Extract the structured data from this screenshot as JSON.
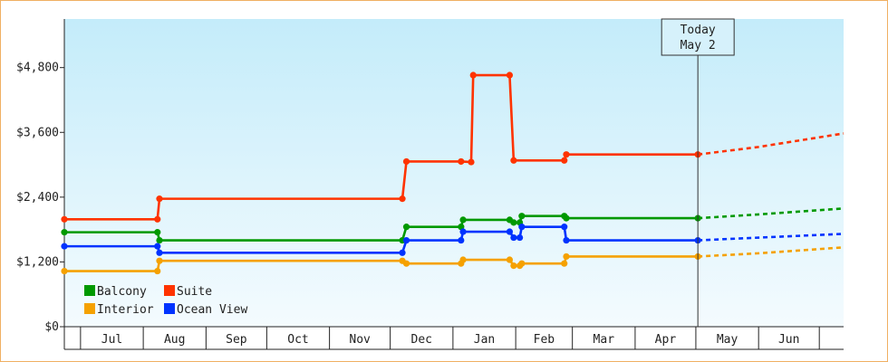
{
  "chart_data": {
    "type": "line",
    "y_axis": {
      "ticks": [
        0,
        1200,
        2400,
        3600,
        4800
      ],
      "tick_labels": [
        "$0",
        "$1,200",
        "$2,400",
        "$3,600",
        "$4,800"
      ],
      "ylim": [
        0,
        5700
      ]
    },
    "x_axis": {
      "months": [
        "Jul",
        "Aug",
        "Sep",
        "Oct",
        "Nov",
        "Dec",
        "Jan",
        "Feb",
        "Mar",
        "Apr",
        "May",
        "Jun"
      ],
      "start": "2025-06-23",
      "end": "2026-07-13"
    },
    "grid": false,
    "legend_placement": "bottom-left",
    "today_marker": {
      "date": "2026-05-02",
      "line1": "Today",
      "line2": "May 2"
    },
    "series": [
      {
        "name": "Suite",
        "color": "#ff3300",
        "points": [
          [
            "2025-06-23",
            1990
          ],
          [
            "2025-08-08",
            1990
          ],
          [
            "2025-08-09",
            2370
          ],
          [
            "2025-12-07",
            2370
          ],
          [
            "2025-12-09",
            3060
          ],
          [
            "2026-01-05",
            3060
          ],
          [
            "2026-01-10",
            3050
          ],
          [
            "2026-01-11",
            4660
          ],
          [
            "2026-01-29",
            4660
          ],
          [
            "2026-01-31",
            3080
          ],
          [
            "2026-02-25",
            3080
          ],
          [
            "2026-02-26",
            3190
          ],
          [
            "2026-05-02",
            3190
          ]
        ],
        "forecast": [
          [
            "2026-05-02",
            3190
          ],
          [
            "2026-06-01",
            3330
          ],
          [
            "2026-07-13",
            3580
          ]
        ]
      },
      {
        "name": "Balcony",
        "color": "#009900",
        "points": [
          [
            "2025-06-23",
            1750
          ],
          [
            "2025-08-08",
            1750
          ],
          [
            "2025-08-09",
            1600
          ],
          [
            "2025-12-07",
            1600
          ],
          [
            "2025-12-09",
            1850
          ],
          [
            "2026-01-05",
            1850
          ],
          [
            "2026-01-06",
            1980
          ],
          [
            "2026-01-29",
            1980
          ],
          [
            "2026-01-31",
            1930
          ],
          [
            "2026-02-03",
            1930
          ],
          [
            "2026-02-04",
            2050
          ],
          [
            "2026-02-25",
            2050
          ],
          [
            "2026-02-26",
            2010
          ],
          [
            "2026-05-02",
            2010
          ]
        ],
        "forecast": [
          [
            "2026-05-02",
            2010
          ],
          [
            "2026-06-01",
            2080
          ],
          [
            "2026-07-13",
            2190
          ]
        ]
      },
      {
        "name": "Ocean View",
        "color": "#0033ff",
        "points": [
          [
            "2025-06-23",
            1490
          ],
          [
            "2025-08-08",
            1490
          ],
          [
            "2025-08-09",
            1370
          ],
          [
            "2025-12-07",
            1370
          ],
          [
            "2025-12-09",
            1600
          ],
          [
            "2026-01-05",
            1600
          ],
          [
            "2026-01-06",
            1760
          ],
          [
            "2026-01-29",
            1760
          ],
          [
            "2026-01-31",
            1650
          ],
          [
            "2026-02-03",
            1650
          ],
          [
            "2026-02-04",
            1850
          ],
          [
            "2026-02-25",
            1850
          ],
          [
            "2026-02-26",
            1600
          ],
          [
            "2026-05-02",
            1600
          ]
        ],
        "forecast": [
          [
            "2026-05-02",
            1600
          ],
          [
            "2026-06-01",
            1650
          ],
          [
            "2026-07-13",
            1720
          ]
        ]
      },
      {
        "name": "Interior",
        "color": "#f5a100",
        "points": [
          [
            "2025-06-23",
            1030
          ],
          [
            "2025-08-08",
            1030
          ],
          [
            "2025-08-09",
            1220
          ],
          [
            "2025-12-07",
            1220
          ],
          [
            "2025-12-09",
            1170
          ],
          [
            "2026-01-05",
            1170
          ],
          [
            "2026-01-06",
            1240
          ],
          [
            "2026-01-29",
            1240
          ],
          [
            "2026-01-31",
            1130
          ],
          [
            "2026-02-03",
            1130
          ],
          [
            "2026-02-04",
            1170
          ],
          [
            "2026-02-25",
            1170
          ],
          [
            "2026-02-26",
            1300
          ],
          [
            "2026-05-02",
            1300
          ]
        ],
        "forecast": [
          [
            "2026-05-02",
            1300
          ],
          [
            "2026-06-01",
            1360
          ],
          [
            "2026-07-13",
            1470
          ]
        ]
      }
    ],
    "legend": [
      {
        "name": "Balcony",
        "color": "#009900"
      },
      {
        "name": "Suite",
        "color": "#ff3300"
      },
      {
        "name": "Interior",
        "color": "#f5a100"
      },
      {
        "name": "Ocean View",
        "color": "#0033ff"
      }
    ]
  }
}
